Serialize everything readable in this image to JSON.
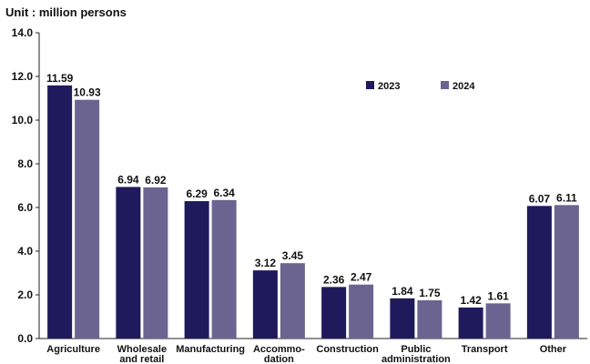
{
  "chart_data": {
    "type": "bar",
    "title": "Unit : million persons",
    "categories": [
      [
        "Agriculture"
      ],
      [
        "Wholesale",
        "and retail"
      ],
      [
        "Manufacturing"
      ],
      [
        "Accommo-",
        "dation"
      ],
      [
        "Construction"
      ],
      [
        "Public",
        "administration"
      ],
      [
        "Transport"
      ],
      [
        "Other"
      ]
    ],
    "series": [
      {
        "name": "2023",
        "color": "#1f1a5c",
        "values": [
          11.59,
          6.94,
          6.29,
          3.12,
          2.36,
          1.84,
          1.42,
          6.07
        ],
        "labels": [
          "11.59",
          "6.94",
          "6.29",
          "3.12",
          "2.36",
          "1.84",
          "1.42",
          "6.07"
        ]
      },
      {
        "name": "2024",
        "color": "#6b6491",
        "values": [
          10.93,
          6.92,
          6.34,
          3.45,
          2.47,
          1.75,
          1.61,
          6.11
        ],
        "labels": [
          "10.93",
          "6.92",
          "6.34",
          "3.45",
          "2.47",
          "1.75",
          "1.61",
          "6.11"
        ]
      }
    ],
    "ylim": [
      0,
      14
    ],
    "yticks": [
      "0.0",
      "2.0",
      "4.0",
      "6.0",
      "8.0",
      "10.0",
      "12.0",
      "14.0"
    ],
    "legend_position": "top-right",
    "grid": false
  }
}
